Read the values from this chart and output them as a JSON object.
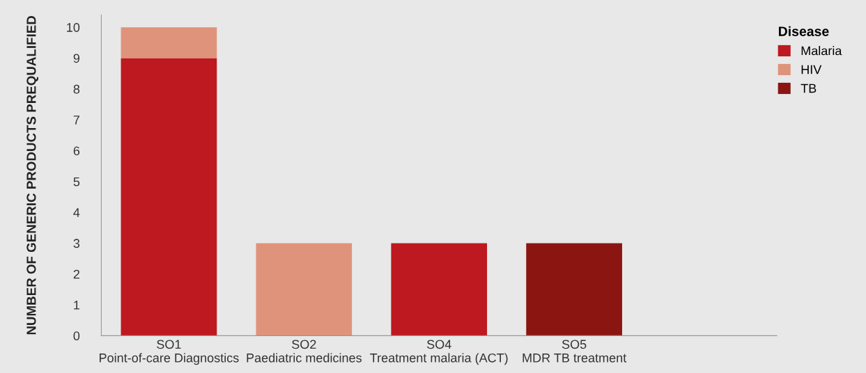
{
  "chart_data": {
    "type": "bar",
    "stacked": true,
    "ylabel": "NUMBER OF GENERIC PRODUCTS PREQUALIFIED",
    "legend_title": "Disease",
    "categories": [
      "SO1\nPoint-of-care Diagnostics",
      "SO2\nPaediatric medicines",
      "SO4\nTreatment malaria (ACT)",
      "SO5\nMDR TB treatment"
    ],
    "series": [
      {
        "name": "Malaria",
        "color": "#be1820",
        "values": [
          9,
          0,
          3,
          0
        ]
      },
      {
        "name": "HIV",
        "color": "#e0937b",
        "values": [
          1,
          3,
          0,
          0
        ]
      },
      {
        "name": "TB",
        "color": "#8b1511",
        "values": [
          0,
          0,
          0,
          3
        ]
      }
    ],
    "ylim": [
      0,
      10.4
    ],
    "yticks": [
      0,
      1,
      2,
      3,
      4,
      5,
      6,
      7,
      8,
      9,
      10
    ],
    "grid": false,
    "legend": "top right"
  }
}
